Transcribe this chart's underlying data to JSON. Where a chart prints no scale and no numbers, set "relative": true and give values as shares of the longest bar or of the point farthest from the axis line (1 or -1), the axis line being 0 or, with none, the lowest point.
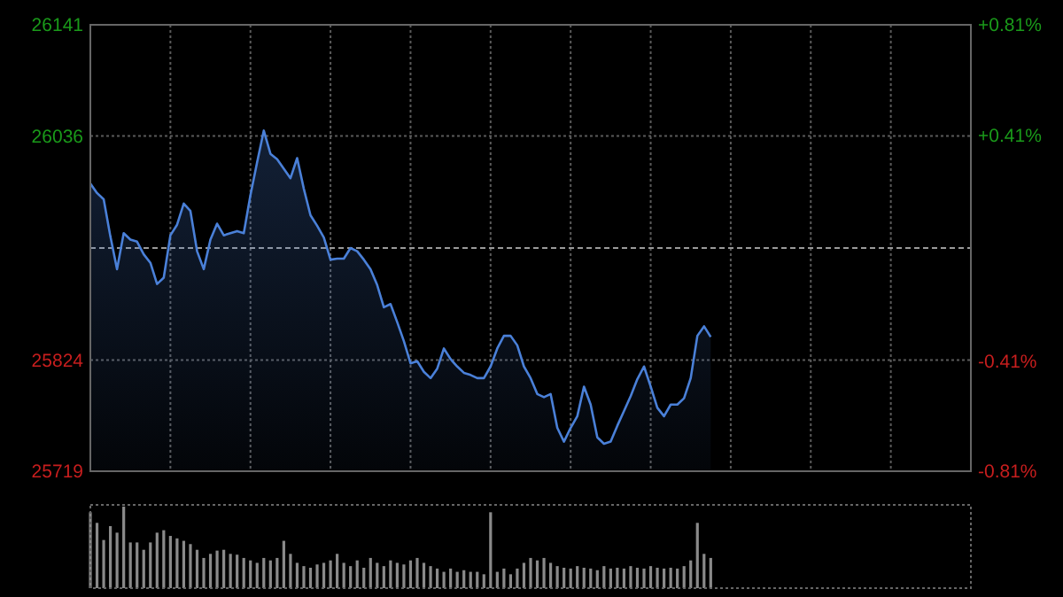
{
  "chart_data": [
    {
      "type": "area",
      "categories": [
        null,
        null,
        null,
        null,
        null,
        null,
        null,
        null,
        null,
        null,
        null,
        null,
        null,
        null,
        null,
        null,
        null,
        null,
        null,
        null,
        null,
        null,
        null,
        null,
        null,
        null,
        null,
        null,
        null,
        null,
        null,
        null,
        null,
        null,
        null,
        null,
        null,
        null,
        null,
        null,
        null,
        null,
        null,
        null,
        null,
        null,
        null,
        null,
        null,
        null,
        null,
        null,
        null,
        null,
        null,
        null,
        null,
        null,
        null,
        null,
        null,
        null,
        null,
        null,
        null,
        null,
        null,
        null,
        null,
        null,
        null,
        null,
        null,
        null,
        null,
        null,
        null,
        null,
        null,
        null,
        null,
        null,
        null,
        null,
        null,
        null,
        null,
        null,
        null,
        null,
        null,
        null,
        null,
        null
      ],
      "series": [
        {
          "color": "#4a80d8",
          "values": [
            25991,
            25982,
            25976,
            25941,
            25910,
            25944,
            25938,
            25936,
            25924,
            25916,
            25896,
            25902,
            25942,
            25952,
            25972,
            25965,
            25927,
            25910,
            25938,
            25953,
            25942,
            25944,
            25946,
            25944,
            25980,
            26011,
            26041,
            26019,
            26014,
            26005,
            25996,
            26015,
            25986,
            25961,
            25951,
            25940,
            25919,
            25920,
            25920,
            25930,
            25927,
            25919,
            25910,
            25895,
            25874,
            25877,
            25860,
            25842,
            25821,
            25823,
            25813,
            25807,
            25816,
            25835,
            25825,
            25818,
            25812,
            25810,
            25807,
            25807,
            25818,
            25835,
            25847,
            25847,
            25838,
            25818,
            25807,
            25792,
            25789,
            25792,
            25760,
            25747,
            25760,
            25771,
            25799,
            25782,
            25751,
            25745,
            25747,
            25762,
            25776,
            25790,
            25806,
            25818,
            25799,
            25779,
            25771,
            25782,
            25782,
            25788,
            25807,
            25847,
            25856,
            25846
          ]
        }
      ],
      "ylim": [
        25719,
        26141
      ],
      "yticks": [
        25719,
        25824,
        26036,
        26141
      ],
      "y2lim": [
        -0.81,
        0.81
      ],
      "y2ticks": [
        {
          "value": -0.81,
          "label": "-0.81%"
        },
        {
          "value": -0.41,
          "label": "-0.41%"
        },
        {
          "value": 0.41,
          "label": "+0.41%"
        },
        {
          "value": 0.81,
          "label": "+0.81%"
        }
      ],
      "ref_lines": [
        {
          "axis": "y",
          "value": 25930,
          "color": "#9a9a9a",
          "line_style": "dashed"
        }
      ],
      "grid": true
    },
    {
      "type": "bar",
      "relative": true,
      "categories": [
        null,
        null,
        null,
        null,
        null,
        null,
        null,
        null,
        null,
        null,
        null,
        null,
        null,
        null,
        null,
        null,
        null,
        null,
        null,
        null,
        null,
        null,
        null,
        null,
        null,
        null,
        null,
        null,
        null,
        null,
        null,
        null,
        null,
        null,
        null,
        null,
        null,
        null,
        null,
        null,
        null,
        null,
        null,
        null,
        null,
        null,
        null,
        null,
        null,
        null,
        null,
        null,
        null,
        null,
        null,
        null,
        null,
        null,
        null,
        null,
        null,
        null,
        null,
        null,
        null,
        null,
        null,
        null,
        null,
        null,
        null,
        null,
        null,
        null,
        null,
        null,
        null,
        null,
        null,
        null,
        null,
        null,
        null,
        null,
        null,
        null,
        null,
        null,
        null,
        null,
        null,
        null,
        null,
        null
      ],
      "color": "#8a8a8a",
      "values": [
        0.93,
        0.8,
        0.59,
        0.76,
        0.68,
        1,
        0.56,
        0.56,
        0.47,
        0.56,
        0.68,
        0.71,
        0.64,
        0.61,
        0.58,
        0.54,
        0.47,
        0.37,
        0.42,
        0.46,
        0.47,
        0.42,
        0.41,
        0.37,
        0.34,
        0.31,
        0.37,
        0.34,
        0.37,
        0.58,
        0.42,
        0.31,
        0.27,
        0.25,
        0.29,
        0.31,
        0.34,
        0.42,
        0.31,
        0.27,
        0.34,
        0.25,
        0.37,
        0.31,
        0.27,
        0.34,
        0.31,
        0.29,
        0.34,
        0.37,
        0.31,
        0.27,
        0.24,
        0.2,
        0.24,
        0.2,
        0.22,
        0.2,
        0.2,
        0.17,
        0.93,
        0.2,
        0.24,
        0.17,
        0.24,
        0.31,
        0.37,
        0.34,
        0.37,
        0.31,
        0.27,
        0.25,
        0.24,
        0.27,
        0.25,
        0.24,
        0.22,
        0.27,
        0.24,
        0.25,
        0.24,
        0.27,
        0.25,
        0.24,
        0.27,
        0.25,
        0.24,
        0.25,
        0.24,
        0.27,
        0.34,
        0.8,
        0.42,
        0.37
      ]
    }
  ]
}
